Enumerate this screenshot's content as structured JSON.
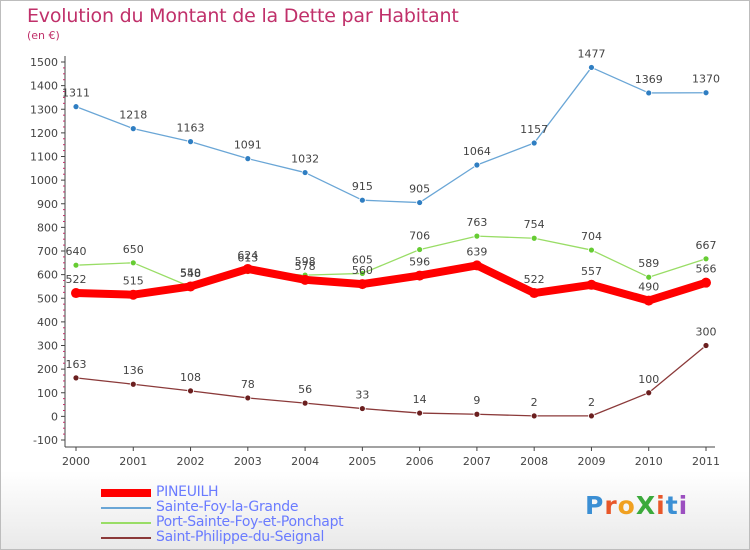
{
  "header": {
    "title": "Evolution du Montant de la Dette par Habitant",
    "unit": "(en €)"
  },
  "brand": {
    "text": "ProXiti",
    "colors": [
      "#3b8fd4",
      "#e8572a",
      "#f0a020",
      "#3baa3b",
      "#e8572a",
      "#3b8fd4",
      "#9c4fc0"
    ]
  },
  "chart_data": {
    "type": "line",
    "title": "Evolution du Montant de la Dette par Habitant",
    "ylabel": "(en €)",
    "xlabel": "",
    "x": [
      "2000",
      "2001",
      "2002",
      "2003",
      "2004",
      "2005",
      "2006",
      "2007",
      "2008",
      "2009",
      "2010",
      "2011"
    ],
    "ylim": [
      -100,
      1500
    ],
    "yticks": [
      "-100",
      "0",
      "100",
      "200",
      "300",
      "400",
      "500",
      "600",
      "700",
      "800",
      "900",
      "1000",
      "1100",
      "1200",
      "1300",
      "1400",
      "1500"
    ],
    "grid": false,
    "legend_position": "bottom-left",
    "series": [
      {
        "name": "PINEUILH",
        "color": "#ff0000",
        "point_color": "#ff0000",
        "values": [
          522,
          515,
          550,
          624,
          578,
          560,
          596,
          639,
          522,
          557,
          490,
          566
        ],
        "labels": [
          "522",
          "515",
          "550",
          "624",
          "578",
          "560",
          "596",
          "639",
          "522",
          "557",
          "490",
          "566"
        ]
      },
      {
        "name": "Sainte-Foy-la-Grande",
        "color": "#6aa6d6",
        "point_color": "#2f7ec2",
        "values": [
          1311,
          1218,
          1163,
          1091,
          1032,
          915,
          905,
          1064,
          1157,
          1477,
          1369,
          1370
        ],
        "labels": [
          "1311",
          "1218",
          "1163",
          "1091",
          "1032",
          "915",
          "905",
          "1064",
          "1157",
          "1477",
          "1369",
          "1370"
        ]
      },
      {
        "name": "Port-Sainte-Foy-et-Ponchapt",
        "color": "#99dd66",
        "point_color": "#66cc33",
        "values": [
          640,
          650,
          548,
          613,
          598,
          605,
          706,
          763,
          754,
          704,
          589,
          667
        ],
        "labels": [
          "640",
          "650",
          "548",
          "613",
          "598",
          "605",
          "706",
          "763",
          "754",
          "704",
          "589",
          "667"
        ]
      },
      {
        "name": "Saint-Philippe-du-Seignal",
        "color": "#8b3a3a",
        "point_color": "#6b1f1f",
        "values": [
          163,
          136,
          108,
          78,
          56,
          33,
          14,
          9,
          2,
          2,
          100,
          300
        ],
        "labels": [
          "163",
          "136",
          "108",
          "78",
          "56",
          "33",
          "14",
          "9",
          "2",
          "2",
          "100",
          "300"
        ]
      }
    ]
  }
}
